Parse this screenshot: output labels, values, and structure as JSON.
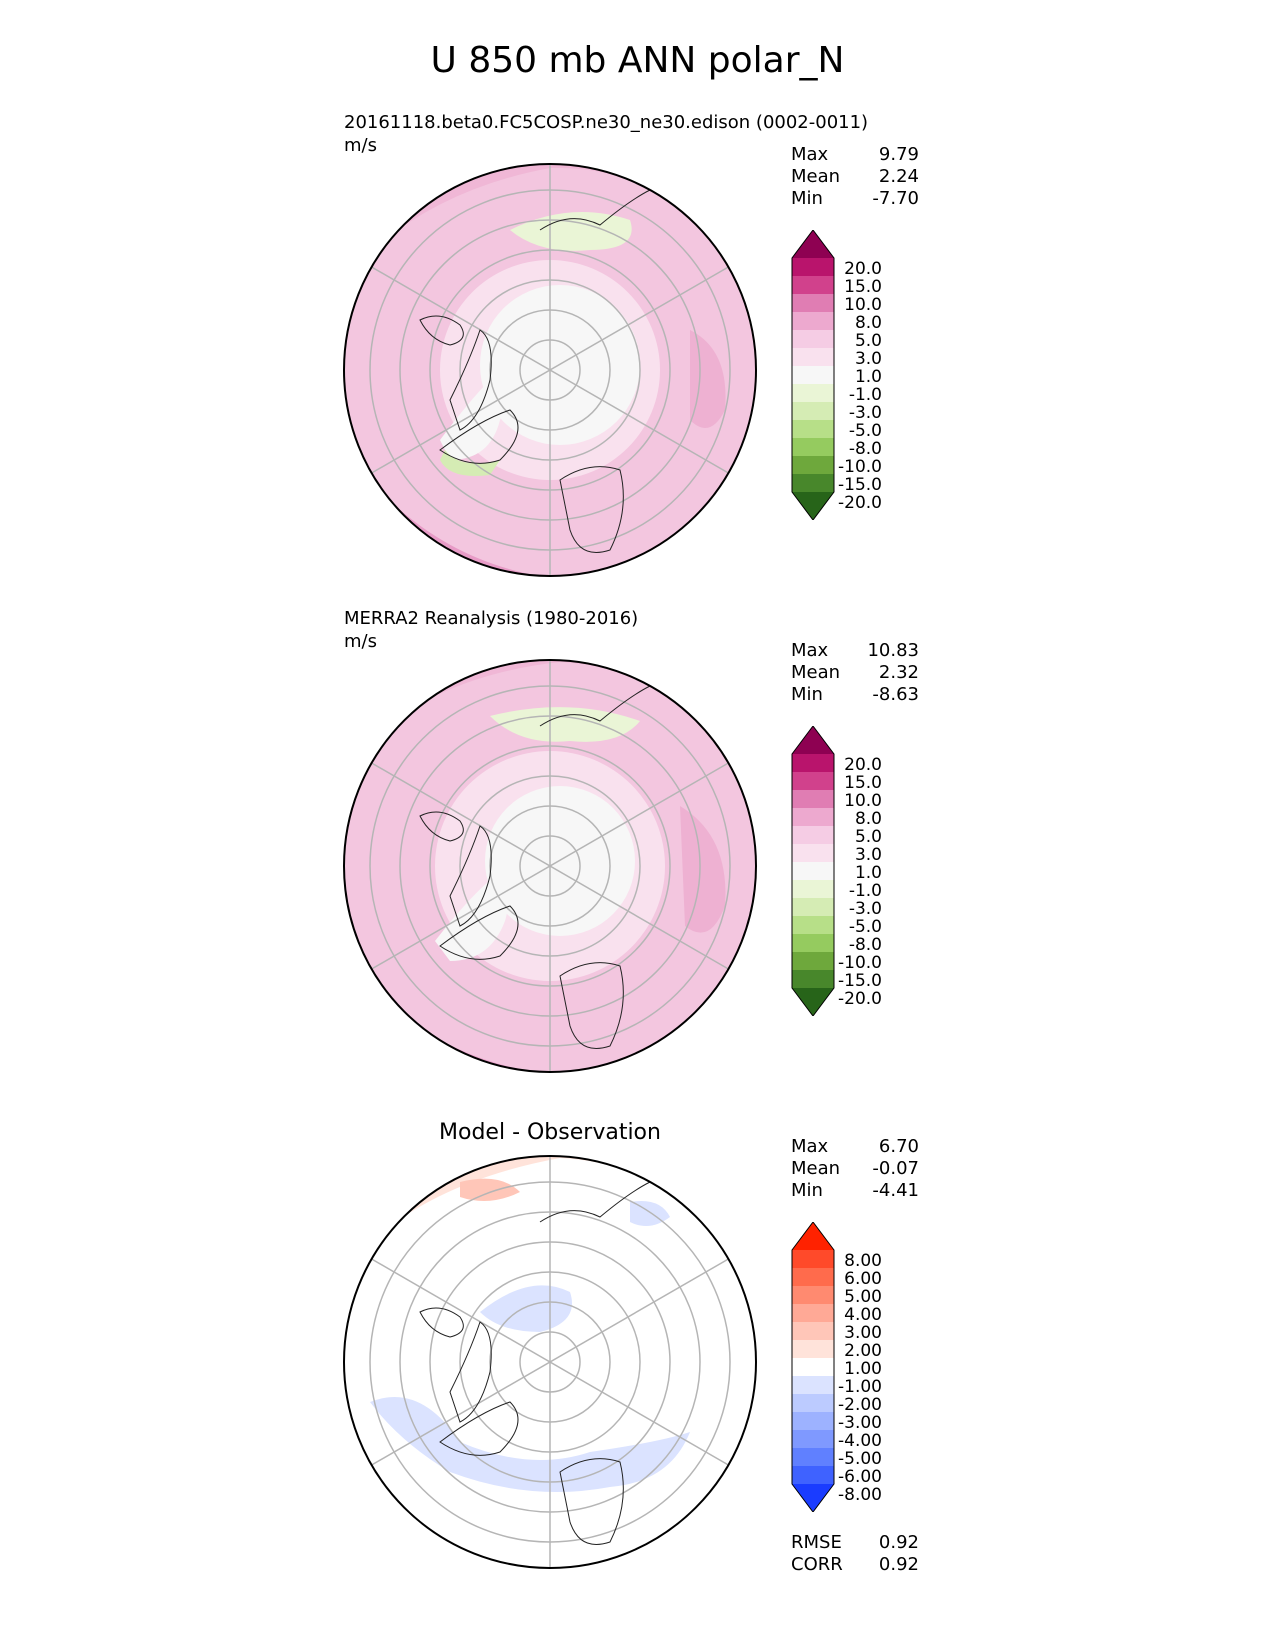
{
  "title": "U 850 mb ANN polar_N",
  "chart_data": [
    {
      "type": "heatmap",
      "title": "20161118.beta0.FC5COSP.ne30_ne30.edison (0002-0011)",
      "units": "m/s",
      "stats": {
        "max_label": "Max",
        "max": "9.79",
        "mean_label": "Mean",
        "mean": "2.24",
        "min_label": "Min",
        "min": "-7.70"
      },
      "colorbar": {
        "levels": [
          "20.0",
          "15.0",
          "10.0",
          "8.0",
          "5.0",
          "3.0",
          "1.0",
          "-1.0",
          "-3.0",
          "-5.0",
          "-8.0",
          "-10.0",
          "-15.0",
          "-20.0"
        ],
        "colors": [
          "#8e0152",
          "#b9146c",
          "#d1418c",
          "#e07db3",
          "#eda9cf",
          "#f5cce4",
          "#f9e1ee",
          "#f7f7f7",
          "#eaf5d6",
          "#d5ecb4",
          "#b7df88",
          "#95cb5f",
          "#6ea83c",
          "#48872b",
          "#276419"
        ]
      }
    },
    {
      "type": "heatmap",
      "title": "MERRA2 Reanalysis (1980-2016)",
      "units": "m/s",
      "stats": {
        "max_label": "Max",
        "max": "10.83",
        "mean_label": "Mean",
        "mean": "2.32",
        "min_label": "Min",
        "min": "-8.63"
      },
      "colorbar": {
        "levels": [
          "20.0",
          "15.0",
          "10.0",
          "8.0",
          "5.0",
          "3.0",
          "1.0",
          "-1.0",
          "-3.0",
          "-5.0",
          "-8.0",
          "-10.0",
          "-15.0",
          "-20.0"
        ],
        "colors": [
          "#8e0152",
          "#b9146c",
          "#d1418c",
          "#e07db3",
          "#eda9cf",
          "#f5cce4",
          "#f9e1ee",
          "#f7f7f7",
          "#eaf5d6",
          "#d5ecb4",
          "#b7df88",
          "#95cb5f",
          "#6ea83c",
          "#48872b",
          "#276419"
        ]
      }
    },
    {
      "type": "heatmap",
      "title": "Model - Observation",
      "stats": {
        "max_label": "Max",
        "max": "6.70",
        "mean_label": "Mean",
        "mean": "-0.07",
        "min_label": "Min",
        "min": "-4.41"
      },
      "metrics": {
        "rmse_label": "RMSE",
        "rmse": "0.92",
        "corr_label": "CORR",
        "corr": "0.92"
      },
      "colorbar": {
        "levels": [
          "8.00",
          "6.00",
          "5.00",
          "4.00",
          "3.00",
          "2.00",
          "1.00",
          "-1.00",
          "-2.00",
          "-3.00",
          "-4.00",
          "-5.00",
          "-6.00",
          "-8.00"
        ],
        "colors": [
          "#ff2200",
          "#ff4a2a",
          "#ff6b4c",
          "#ff8a70",
          "#ffa996",
          "#ffc6b8",
          "#ffe3da",
          "#ffffff",
          "#dbe3ff",
          "#bccbff",
          "#9db2ff",
          "#7f99ff",
          "#6080ff",
          "#3f62ff",
          "#1a3cff"
        ]
      }
    }
  ]
}
